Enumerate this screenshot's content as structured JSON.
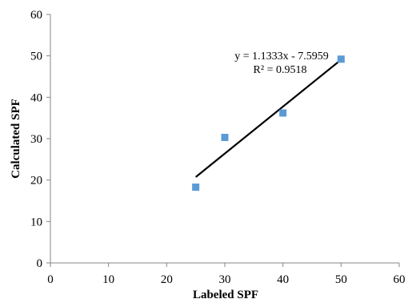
{
  "chart_data": {
    "type": "scatter",
    "xlabel": "Labeled SPF",
    "ylabel": "Calculated SPF",
    "xlim": [
      0,
      60
    ],
    "ylim": [
      0,
      60
    ],
    "x_ticks": [
      "0",
      "10",
      "20",
      "30",
      "40",
      "50",
      "60"
    ],
    "y_ticks": [
      "0",
      "10",
      "20",
      "30",
      "40",
      "50",
      "60"
    ],
    "grid": false,
    "legend": "none",
    "series": [
      {
        "points": [
          {
            "x": 25,
            "y": 18.3
          },
          {
            "x": 30,
            "y": 30.3
          },
          {
            "x": 40,
            "y": 36.2
          },
          {
            "x": 50,
            "y": 49.2
          }
        ],
        "color": "#5b9bd5"
      }
    ],
    "trendline": {
      "slope": 1.1333,
      "intercept": -7.5959,
      "x_range": [
        25,
        50
      ],
      "color": "#000000"
    },
    "annotations": {
      "equation": "y = 1.1333x - 7.5959",
      "r_squared": "R² = 0.9518"
    }
  }
}
